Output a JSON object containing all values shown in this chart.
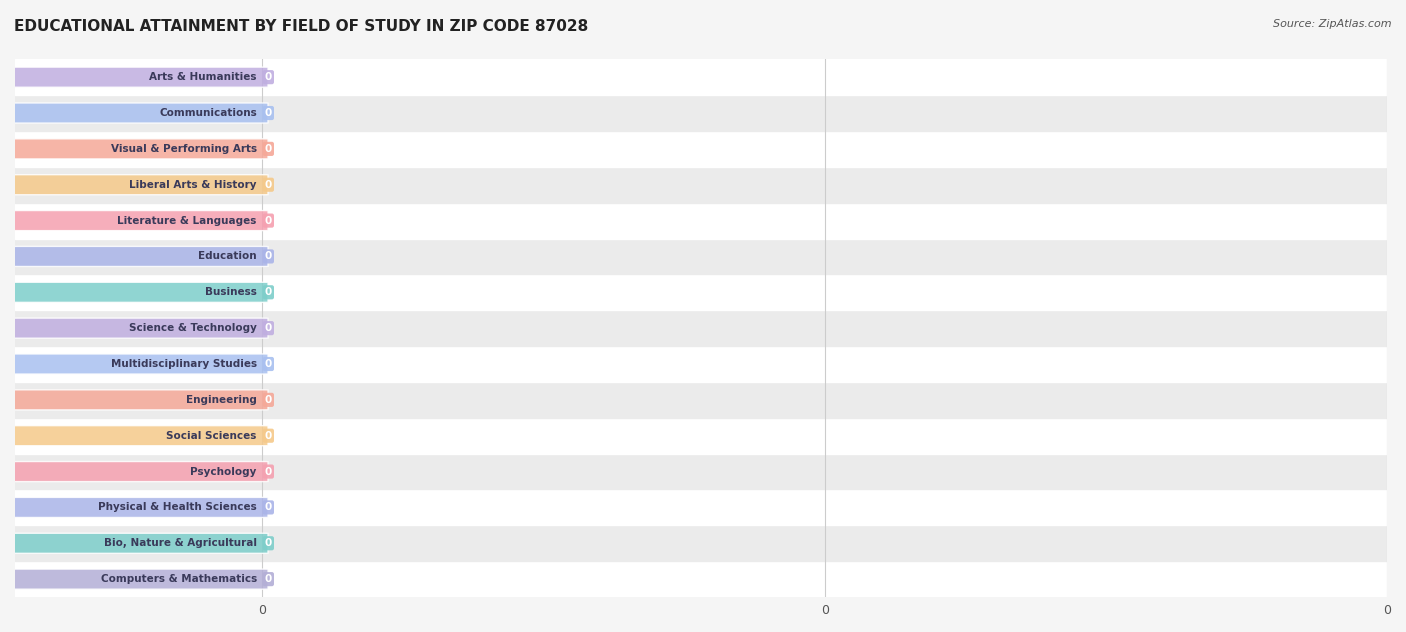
{
  "title": "EDUCATIONAL ATTAINMENT BY FIELD OF STUDY IN ZIP CODE 87028",
  "source": "Source: ZipAtlas.com",
  "categories": [
    "Computers & Mathematics",
    "Bio, Nature & Agricultural",
    "Physical & Health Sciences",
    "Psychology",
    "Social Sciences",
    "Engineering",
    "Multidisciplinary Studies",
    "Science & Technology",
    "Business",
    "Education",
    "Literature & Languages",
    "Liberal Arts & History",
    "Visual & Performing Arts",
    "Communications",
    "Arts & Humanities"
  ],
  "values": [
    0,
    0,
    0,
    0,
    0,
    0,
    0,
    0,
    0,
    0,
    0,
    0,
    0,
    0,
    0
  ],
  "bar_colors": [
    "#b3aed6",
    "#7dcfca",
    "#aab4e8",
    "#f5a0b0",
    "#f5c98a",
    "#f5a898",
    "#a8c0f0",
    "#c0aee0",
    "#7dcfca",
    "#aab4e8",
    "#f5a0b0",
    "#f5c98a",
    "#f5a898",
    "#a8c0f0",
    "#c0aee0"
  ],
  "label_bg_colors": [
    "#b3aed6",
    "#7dcfca",
    "#aab4e8",
    "#f5a0b0",
    "#f5c98a",
    "#f5a898",
    "#a8c0f0",
    "#c0aee0",
    "#7dcfca",
    "#aab4e8",
    "#f5a0b0",
    "#f5c98a",
    "#f5a898",
    "#a8c0f0",
    "#c0aee0"
  ],
  "xlim": [
    0,
    1
  ],
  "background_color": "#f5f5f5",
  "row_bg_colors": [
    "#ffffff",
    "#f0f0f0"
  ],
  "title_fontsize": 11,
  "bar_height": 0.55,
  "text_color": "#555555",
  "label_text_color": "#4a4a6a"
}
